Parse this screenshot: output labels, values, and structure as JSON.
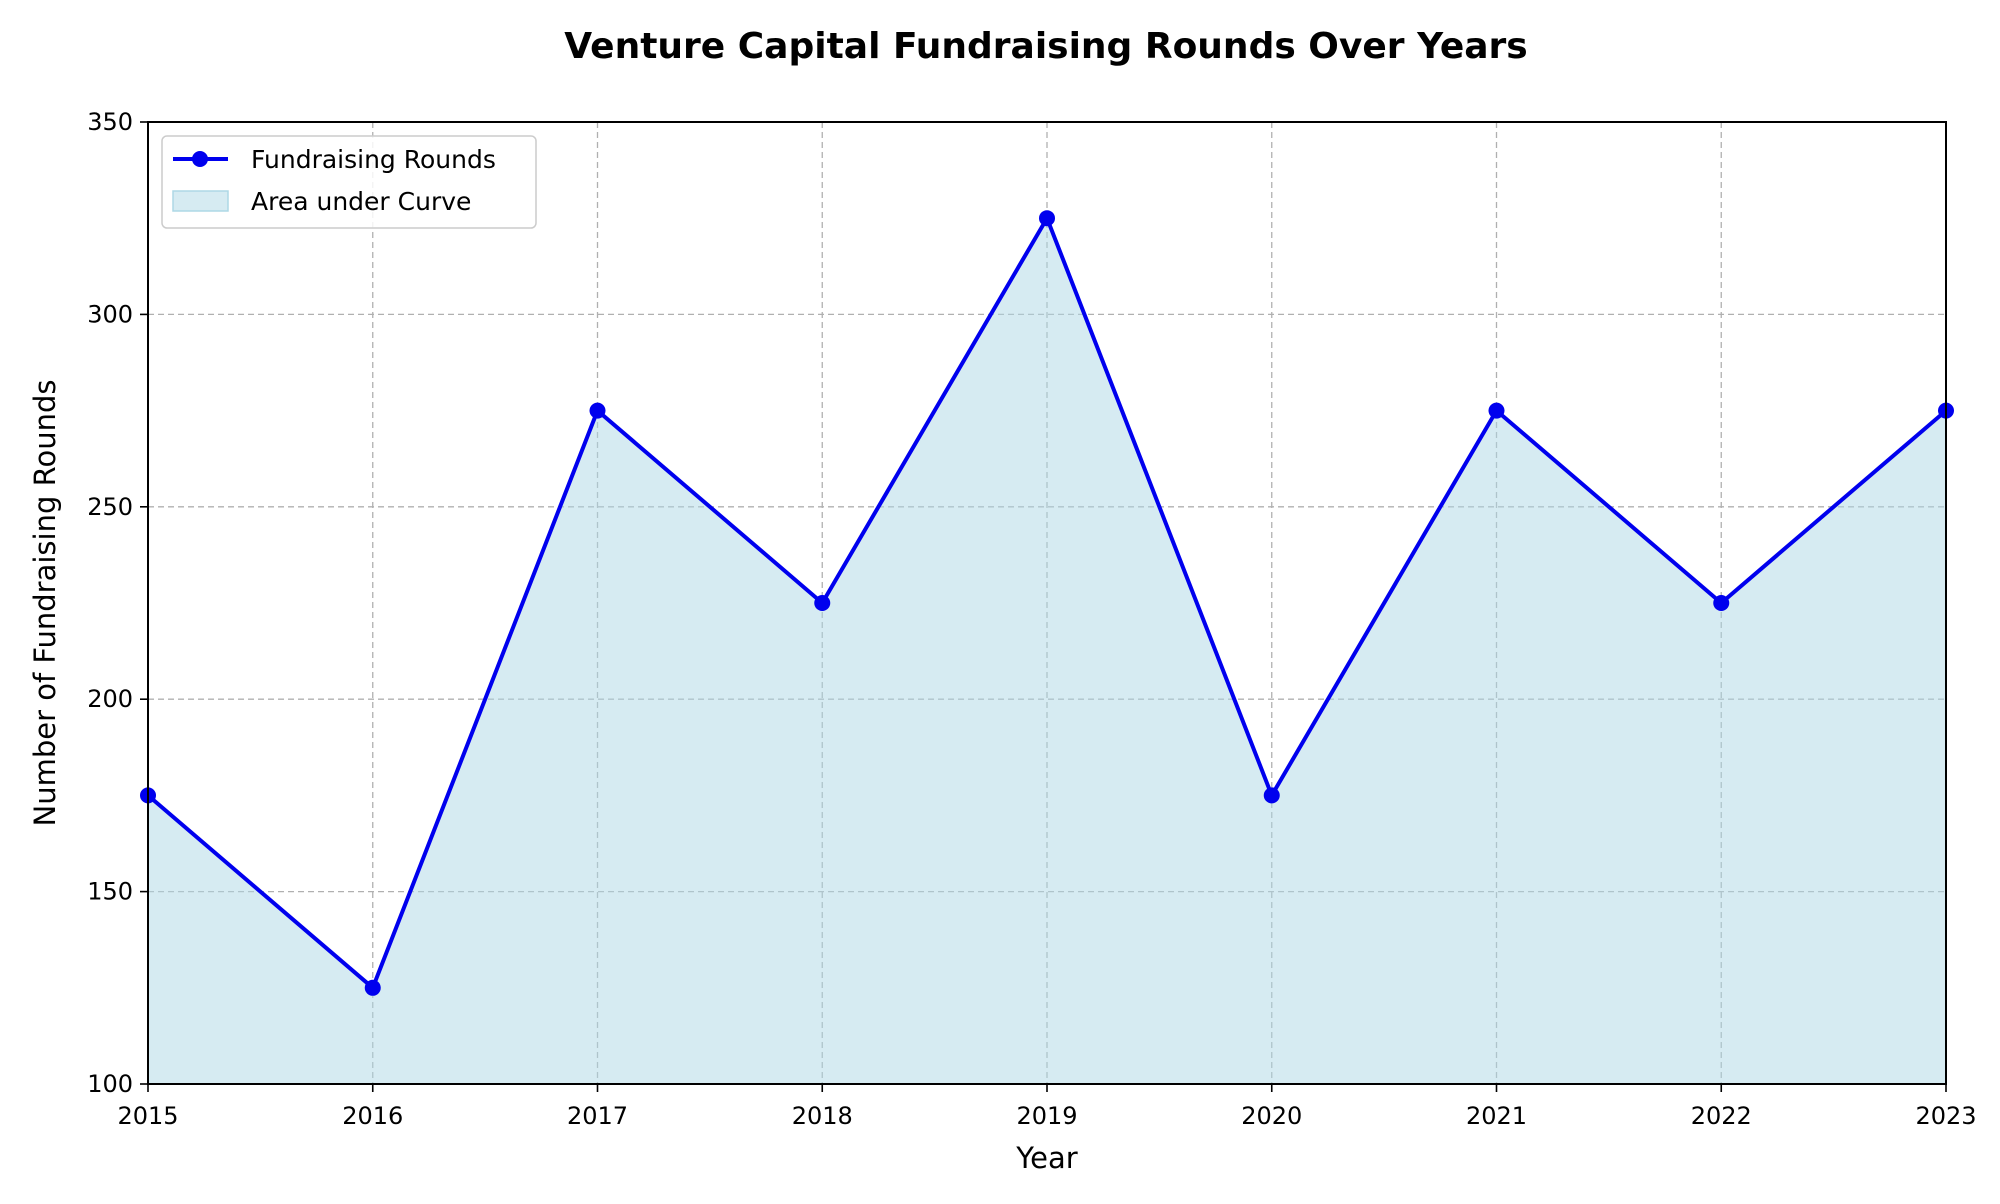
{
  "chart_data": {
    "type": "area",
    "title": "Venture Capital Fundraising Rounds Over Years",
    "xlabel": "Year",
    "ylabel": "Number of Fundraising Rounds",
    "x": [
      2015,
      2016,
      2017,
      2018,
      2019,
      2020,
      2021,
      2022,
      2023
    ],
    "xticks": [
      "2015",
      "2016",
      "2017",
      "2018",
      "2019",
      "2020",
      "2021",
      "2022",
      "2023"
    ],
    "yticks": [
      "100",
      "150",
      "200",
      "250",
      "300",
      "350"
    ],
    "xlim": [
      2015,
      2023
    ],
    "ylim": [
      100,
      350
    ],
    "grid": true,
    "legend_position": "top-left",
    "series": [
      {
        "name": "Fundraising Rounds",
        "values": [
          175,
          125,
          275,
          225,
          325,
          175,
          275,
          225,
          275
        ],
        "color": "#0000ee",
        "marker": "circle"
      }
    ],
    "area": {
      "name": "Area under Curve",
      "color": "#add8e6",
      "opacity": 0.5
    }
  }
}
